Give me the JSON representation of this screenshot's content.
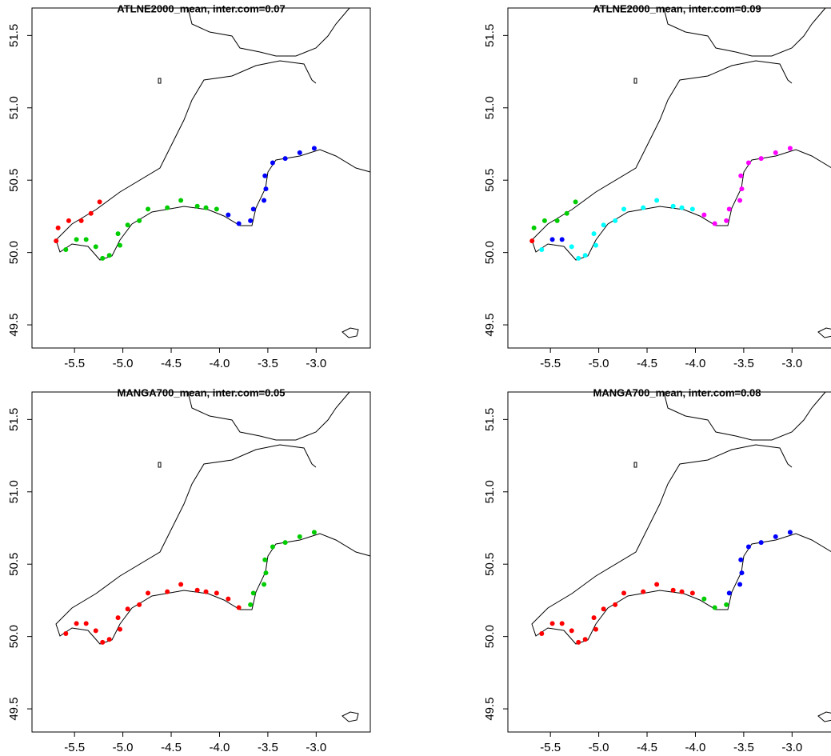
{
  "chart_data": [
    {
      "type": "scatter",
      "title": "ATLNE2000_mean, inter.com=0.07",
      "xlim": [
        -5.94,
        -2.44
      ],
      "ylim": [
        49.34,
        51.69
      ],
      "xticks": [
        -5.5,
        {
          "value": -5,
          "label": "-5.0"
        },
        -4.5,
        {
          "value": -4,
          "label": "-4.0"
        },
        -3.5,
        {
          "value": -3,
          "label": "-3.0"
        }
      ],
      "yticks": [
        49.5,
        {
          "value": 50,
          "label": "50.0"
        },
        50.5,
        {
          "value": 51,
          "label": "51.0"
        },
        51.5
      ],
      "series": [
        {
          "color": "#ff0000",
          "x": [
            -5.69,
            -5.67,
            -5.56,
            -5.43,
            -5.33,
            -5.24
          ],
          "y": [
            50.08,
            50.17,
            50.22,
            50.22,
            50.27,
            50.35
          ]
        },
        {
          "color": "#00cd00",
          "x": [
            -5.59,
            -5.48,
            -5.38,
            -5.28,
            -5.21,
            -5.14,
            -5.03,
            -5.05,
            -4.95,
            -4.83,
            -4.74,
            -4.54,
            -4.4,
            -4.23,
            -4.14,
            -4.03
          ],
          "y": [
            50.02,
            50.09,
            50.09,
            50.04,
            49.96,
            49.98,
            50.05,
            50.13,
            50.19,
            50.22,
            50.3,
            50.31,
            50.36,
            50.32,
            50.31,
            50.3
          ]
        },
        {
          "color": "#0000ff",
          "x": [
            -3.91,
            -3.8,
            -3.68,
            -3.65,
            -3.54,
            -3.52,
            -3.53,
            -3.45,
            -3.32,
            -3.17,
            -3.02
          ],
          "y": [
            50.26,
            50.2,
            50.22,
            50.3,
            50.36,
            50.44,
            50.53,
            50.62,
            50.65,
            50.69,
            50.72
          ]
        }
      ]
    },
    {
      "type": "scatter",
      "title": "ATLNE2000_mean, inter.com=0.09",
      "xlim": [
        -5.94,
        -2.44
      ],
      "ylim": [
        49.34,
        51.69
      ],
      "xticks": [
        -5.5,
        {
          "value": -5,
          "label": "-5.0"
        },
        -4.5,
        {
          "value": -4,
          "label": "-4.0"
        },
        -3.5,
        {
          "value": -3,
          "label": "-3.0"
        }
      ],
      "yticks": [
        49.5,
        {
          "value": 50,
          "label": "50.0"
        },
        50.5,
        {
          "value": 51,
          "label": "51.0"
        },
        51.5
      ],
      "series": [
        {
          "color": "#ff0000",
          "x": [
            -5.69
          ],
          "y": [
            50.08
          ]
        },
        {
          "color": "#00cd00",
          "x": [
            -5.67,
            -5.56,
            -5.43,
            -5.33,
            -5.24
          ],
          "y": [
            50.17,
            50.22,
            50.22,
            50.27,
            50.35
          ]
        },
        {
          "color": "#0000ff",
          "x": [
            -5.48,
            -5.38
          ],
          "y": [
            50.09,
            50.09
          ]
        },
        {
          "color": "#00ffff",
          "x": [
            -5.59,
            -5.28,
            -5.21,
            -5.14,
            -5.03,
            -5.05,
            -4.95,
            -4.83,
            -4.74,
            -4.54,
            -4.4,
            -4.23,
            -4.14,
            -4.03
          ],
          "y": [
            50.02,
            50.04,
            49.96,
            49.98,
            50.05,
            50.13,
            50.19,
            50.22,
            50.3,
            50.31,
            50.36,
            50.32,
            50.31,
            50.3
          ]
        },
        {
          "color": "#ff00ff",
          "x": [
            -3.91,
            -3.8,
            -3.68,
            -3.65,
            -3.54,
            -3.52,
            -3.53,
            -3.45,
            -3.32,
            -3.17,
            -3.02
          ],
          "y": [
            50.26,
            50.2,
            50.22,
            50.3,
            50.36,
            50.44,
            50.53,
            50.62,
            50.65,
            50.69,
            50.72
          ]
        }
      ]
    },
    {
      "type": "scatter",
      "title": "MANGA700_mean, inter.com=0.05",
      "xlim": [
        -5.94,
        -2.44
      ],
      "ylim": [
        49.34,
        51.69
      ],
      "xticks": [
        -5.5,
        {
          "value": -5,
          "label": "-5.0"
        },
        -4.5,
        {
          "value": -4,
          "label": "-4.0"
        },
        -3.5,
        {
          "value": -3,
          "label": "-3.0"
        }
      ],
      "yticks": [
        49.5,
        {
          "value": 50,
          "label": "50.0"
        },
        50.5,
        {
          "value": 51,
          "label": "51.0"
        },
        51.5
      ],
      "series": [
        {
          "color": "#ff0000",
          "x": [
            -5.59,
            -5.48,
            -5.38,
            -5.28,
            -5.21,
            -5.14,
            -5.03,
            -5.05,
            -4.95,
            -4.83,
            -4.74,
            -4.54,
            -4.4,
            -4.23,
            -4.14,
            -4.03,
            -3.91,
            -3.8
          ],
          "y": [
            50.02,
            50.09,
            50.09,
            50.04,
            49.96,
            49.98,
            50.05,
            50.13,
            50.19,
            50.22,
            50.3,
            50.31,
            50.36,
            50.32,
            50.31,
            50.3,
            50.26,
            50.2
          ]
        },
        {
          "color": "#00cd00",
          "x": [
            -3.68,
            -3.65,
            -3.54,
            -3.52,
            -3.53,
            -3.45,
            -3.32,
            -3.17,
            -3.02
          ],
          "y": [
            50.22,
            50.3,
            50.36,
            50.44,
            50.53,
            50.62,
            50.65,
            50.69,
            50.72
          ]
        }
      ]
    },
    {
      "type": "scatter",
      "title": "MANGA700_mean, inter.com=0.08",
      "xlim": [
        -5.94,
        -2.44
      ],
      "ylim": [
        49.34,
        51.69
      ],
      "xticks": [
        -5.5,
        {
          "value": -5,
          "label": "-5.0"
        },
        -4.5,
        {
          "value": -4,
          "label": "-4.0"
        },
        -3.5,
        {
          "value": -3,
          "label": "-3.0"
        }
      ],
      "yticks": [
        49.5,
        {
          "value": 50,
          "label": "50.0"
        },
        50.5,
        {
          "value": 51,
          "label": "51.0"
        },
        51.5
      ],
      "series": [
        {
          "color": "#ff0000",
          "x": [
            -5.59,
            -5.48,
            -5.38,
            -5.28,
            -5.21,
            -5.14,
            -5.03,
            -5.05,
            -4.95,
            -4.83,
            -4.74,
            -4.54,
            -4.4,
            -4.23,
            -4.14,
            -4.03
          ],
          "y": [
            50.02,
            50.09,
            50.09,
            50.04,
            49.96,
            49.98,
            50.05,
            50.13,
            50.19,
            50.22,
            50.3,
            50.31,
            50.36,
            50.32,
            50.31,
            50.3
          ]
        },
        {
          "color": "#00cd00",
          "x": [
            -3.91,
            -3.8,
            -3.68
          ],
          "y": [
            50.26,
            50.2,
            50.22
          ]
        },
        {
          "color": "#0000ff",
          "x": [
            -3.65,
            -3.54,
            -3.52,
            -3.53,
            -3.45,
            -3.32,
            -3.17,
            -3.02
          ],
          "y": [
            50.3,
            50.36,
            50.44,
            50.53,
            50.62,
            50.65,
            50.69,
            50.72
          ]
        }
      ]
    }
  ]
}
